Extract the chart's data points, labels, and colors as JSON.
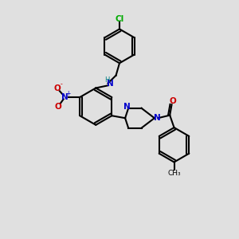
{
  "background_color": "#e0e0e0",
  "bond_color": "#000000",
  "atom_colors": {
    "C": "#000000",
    "N": "#0000cc",
    "O": "#cc0000",
    "Cl": "#00aa00",
    "H": "#008080"
  },
  "figsize": [
    3.0,
    3.0
  ],
  "dpi": 100
}
